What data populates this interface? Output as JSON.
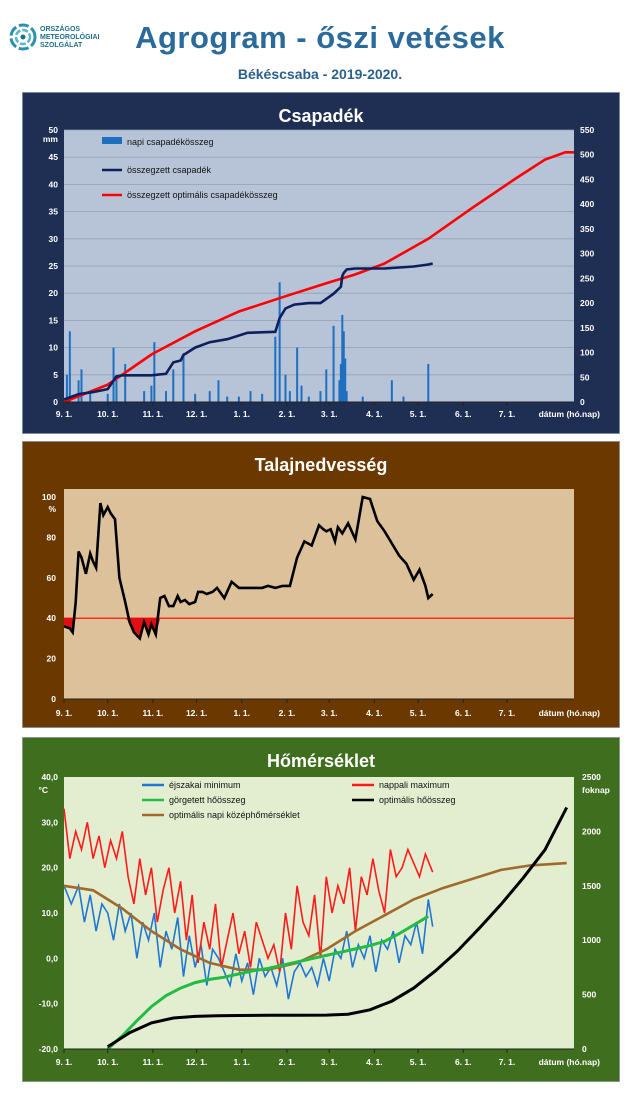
{
  "header": {
    "org_lines": [
      "ORSZÁGOS",
      "METEOROLÓGIAI",
      "SZOLGÁLAT"
    ],
    "title": "Agrogram - őszi vetések",
    "subtitle": "Békéscsaba  - 2019-2020."
  },
  "x_labels": [
    "9. 1.",
    "10. 1.",
    "11. 1.",
    "12. 1.",
    "1. 1.",
    "2. 1.",
    "3. 1.",
    "4. 1.",
    "5. 1.",
    "6. 1.",
    "7. 1.",
    "dátum (hó.nap)"
  ],
  "colors": {
    "precip_frame": "#1f2e53",
    "precip_plot": "#b7c4d8",
    "soil_frame": "#6b3900",
    "soil_plot": "#dcc19a",
    "temp_frame": "#3f6e1e",
    "temp_plot": "#e3eed0"
  },
  "chart_data": [
    {
      "type": "bar",
      "title": "Csapadék",
      "ylabel": "mm",
      "ylim": [
        0,
        50
      ],
      "y2label": "",
      "y2lim": [
        0,
        550
      ],
      "yticks": [
        "0",
        "5",
        "10",
        "15",
        "20",
        "25",
        "30",
        "35",
        "40",
        "45",
        "50"
      ],
      "y2ticks": [
        "0",
        "50",
        "100",
        "150",
        "200",
        "250",
        "300",
        "350",
        "400",
        "450",
        "500",
        "550"
      ],
      "grid": true,
      "legend_position": "top-left",
      "series": [
        {
          "name": "napi csapadékösszeg",
          "type": "bar",
          "color": "#1f6fc1",
          "days": [
            2,
            4,
            10,
            12,
            18,
            30,
            34,
            36,
            42,
            55,
            60,
            62,
            70,
            75,
            82,
            90,
            100,
            106,
            112,
            120,
            128,
            136,
            145,
            148,
            152,
            155,
            160,
            163,
            168,
            176,
            180,
            185,
            189,
            190,
            191,
            192,
            193,
            194,
            205,
            225,
            233,
            250
          ],
          "values": [
            5,
            13,
            4,
            6,
            2,
            1.5,
            10,
            4,
            7,
            2,
            3,
            11,
            2,
            6,
            9,
            1.5,
            2,
            4,
            1,
            1,
            2,
            1.5,
            12,
            22,
            5,
            2,
            10,
            3,
            1,
            2,
            6,
            14,
            4,
            7,
            16,
            13,
            8,
            2,
            1,
            4,
            1,
            7
          ]
        },
        {
          "name": "összegzett csapadék",
          "type": "line",
          "axis": "right",
          "color": "#0d1f5c",
          "days": [
            0,
            10,
            20,
            30,
            36,
            40,
            60,
            70,
            75,
            80,
            82,
            90,
            100,
            112,
            126,
            145,
            148,
            152,
            158,
            168,
            176,
            185,
            190,
            191,
            192,
            194,
            200,
            220,
            240,
            250,
            253
          ],
          "values": [
            5,
            16,
            20,
            26,
            52,
            54,
            54,
            57,
            80,
            84,
            95,
            110,
            121,
            127,
            140,
            142,
            170,
            189,
            197,
            200,
            200,
            219,
            233,
            255,
            261,
            268,
            270,
            270,
            274,
            278,
            280
          ]
        },
        {
          "name": "összegzett optimális csapadékösszeg",
          "type": "line",
          "axis": "right",
          "color": "#ff0000",
          "days": [
            0,
            30,
            60,
            90,
            120,
            150,
            180,
            200,
            220,
            250,
            280,
            310,
            330,
            344,
            350
          ],
          "values": [
            0,
            35,
            96,
            143,
            183,
            212,
            240,
            258,
            280,
            330,
            392,
            452,
            490,
            505,
            505
          ]
        }
      ]
    },
    {
      "type": "line",
      "title": "Talajnedvesség",
      "ylabel": "%",
      "ylim": [
        0,
        100
      ],
      "yticks": [
        "0",
        "20",
        "40",
        "60",
        "80",
        "100"
      ],
      "grid": false,
      "reference_line": 40,
      "series": [
        {
          "name": "",
          "color": "#000000",
          "days": [
            0,
            4,
            6,
            8,
            10,
            12,
            15,
            18,
            20,
            22,
            25,
            27,
            30,
            32,
            35,
            38,
            42,
            45,
            48,
            52,
            55,
            58,
            60,
            63,
            66,
            69,
            72,
            75,
            78,
            80,
            83,
            86,
            90,
            92,
            95,
            98,
            102,
            105,
            110,
            115,
            120,
            125,
            130,
            133,
            136,
            140,
            145,
            150,
            155,
            160,
            165,
            170,
            175,
            178,
            180,
            183,
            186,
            188,
            191,
            195,
            200,
            205,
            210,
            215,
            220,
            225,
            230,
            235,
            240,
            244,
            248,
            250,
            253
          ],
          "values": [
            36,
            35,
            33,
            48,
            73,
            70,
            62,
            72,
            68,
            65,
            97,
            91,
            95,
            92,
            89,
            60,
            48,
            38,
            33,
            30,
            38,
            32,
            37,
            32,
            50,
            51,
            46,
            46,
            51,
            48,
            49,
            47,
            48,
            53,
            53,
            52,
            53,
            55,
            50,
            58,
            55,
            55,
            55,
            55,
            55,
            56,
            55,
            56,
            56,
            70,
            78,
            76,
            86,
            84,
            83,
            84,
            78,
            85,
            82,
            87,
            79,
            100,
            99,
            88,
            83,
            77,
            71,
            67,
            59,
            64,
            56,
            50,
            52
          ]
        }
      ]
    },
    {
      "type": "line",
      "title": "Hőmérséklet",
      "ylabel": "°C",
      "ylim": [
        -20,
        40
      ],
      "y2label": "foknap",
      "y2lim": [
        0,
        2500
      ],
      "yticks": [
        "-20,0",
        "-10,0",
        "0,0",
        "10,0",
        "20,0",
        "30,0",
        "40,0"
      ],
      "y2ticks": [
        "0",
        "500",
        "1000",
        "1500",
        "2000",
        "2500"
      ],
      "grid": false,
      "legend_position": "top",
      "series": [
        {
          "name": "éjszakai minimum",
          "color": "#1f77d4",
          "days": [
            0,
            5,
            10,
            14,
            18,
            22,
            26,
            30,
            34,
            38,
            42,
            46,
            50,
            54,
            58,
            62,
            66,
            70,
            74,
            78,
            82,
            86,
            90,
            94,
            98,
            102,
            106,
            110,
            114,
            118,
            122,
            126,
            130,
            134,
            138,
            142,
            146,
            150,
            154,
            158,
            162,
            166,
            170,
            174,
            178,
            182,
            186,
            190,
            194,
            198,
            202,
            206,
            210,
            214,
            218,
            222,
            226,
            230,
            234,
            238,
            242,
            246,
            250,
            253
          ],
          "values": [
            16,
            12,
            16,
            8,
            14,
            6,
            12,
            10,
            4,
            12,
            6,
            10,
            0,
            8,
            4,
            10,
            -2,
            6,
            2,
            9,
            -4,
            5,
            -2,
            3,
            -6,
            2,
            0,
            -3,
            -6,
            1,
            -5,
            -1,
            -8,
            0,
            -4,
            -2,
            -6,
            0,
            -9,
            -3,
            -1,
            -4,
            -2,
            -6,
            0,
            -5,
            2,
            0,
            6,
            -2,
            3,
            0,
            5,
            -3,
            4,
            2,
            6,
            -1,
            5,
            3,
            8,
            1,
            13,
            7
          ]
        },
        {
          "name": "nappali maximum",
          "color": "#ff1a1a",
          "days": [
            0,
            4,
            8,
            12,
            16,
            20,
            24,
            28,
            32,
            36,
            40,
            44,
            48,
            52,
            56,
            60,
            64,
            68,
            72,
            76,
            80,
            84,
            88,
            92,
            96,
            100,
            104,
            108,
            112,
            116,
            120,
            124,
            128,
            132,
            136,
            140,
            144,
            148,
            152,
            156,
            160,
            164,
            168,
            172,
            176,
            180,
            184,
            188,
            192,
            196,
            200,
            204,
            208,
            212,
            216,
            220,
            224,
            228,
            232,
            236,
            240,
            244,
            248,
            253
          ],
          "values": [
            33,
            22,
            28,
            24,
            30,
            22,
            27,
            20,
            26,
            22,
            28,
            18,
            12,
            22,
            14,
            20,
            8,
            15,
            20,
            10,
            17,
            4,
            14,
            -1,
            8,
            2,
            12,
            -2,
            4,
            10,
            1,
            6,
            -2,
            8,
            4,
            0,
            3,
            -3,
            10,
            2,
            16,
            8,
            5,
            14,
            0,
            18,
            10,
            16,
            12,
            20,
            6,
            18,
            14,
            22,
            15,
            10,
            24,
            18,
            20,
            24,
            21,
            18,
            23,
            19
          ]
        },
        {
          "name": "görgetett hőösszeg",
          "axis": "right",
          "color": "#22bb44",
          "days": [
            30,
            40,
            50,
            60,
            70,
            80,
            90,
            100,
            110,
            120,
            130,
            140,
            150,
            160,
            170,
            180,
            190,
            200,
            210,
            220,
            230,
            240,
            250
          ],
          "values": [
            0,
            120,
            260,
            390,
            490,
            560,
            610,
            640,
            660,
            690,
            720,
            740,
            770,
            800,
            830,
            860,
            890,
            920,
            950,
            990,
            1060,
            1140,
            1220
          ]
        },
        {
          "name": "optimális hőösszeg",
          "axis": "right",
          "color": "#000000",
          "days": [
            30,
            45,
            60,
            75,
            90,
            105,
            120,
            140,
            160,
            180,
            195,
            210,
            225,
            240,
            255,
            270,
            285,
            300,
            315,
            330,
            345
          ],
          "values": [
            20,
            150,
            240,
            285,
            300,
            305,
            308,
            310,
            310,
            312,
            320,
            360,
            440,
            560,
            720,
            900,
            1110,
            1330,
            1570,
            1830,
            2220
          ]
        },
        {
          "name": "optimális napi középhőmérséklet",
          "color": "#a06a2a",
          "days": [
            0,
            20,
            40,
            60,
            80,
            100,
            120,
            140,
            160,
            180,
            200,
            220,
            240,
            260,
            280,
            300,
            320,
            345
          ],
          "values": [
            16,
            15,
            11,
            6,
            2,
            -1,
            -2.5,
            -2.5,
            -1,
            2,
            6,
            9.5,
            13,
            15.5,
            17.5,
            19.5,
            20.5,
            21
          ]
        }
      ]
    }
  ]
}
